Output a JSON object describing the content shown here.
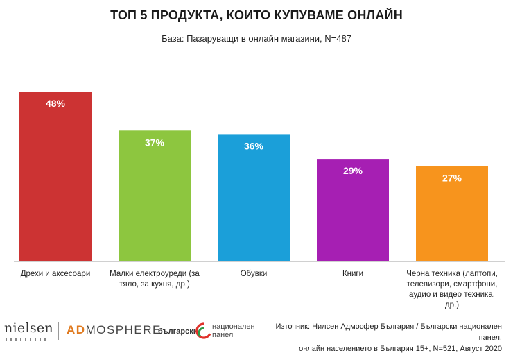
{
  "chart_data": {
    "type": "bar",
    "title": "ТОП 5 ПРОДУКТА, КОИТО КУПУВАМЕ ОНЛАЙН",
    "subtitle": "База: Пазаруващи в онлайн магазини, N=487",
    "categories": [
      "Дрехи и аксесоари",
      "Малки електроуреди (за тяло, за кухня, др.)",
      "Обувки",
      "Книги",
      "Черна техника (лаптопи, телевизори, смартфони, аудио и видео техника, др.)"
    ],
    "category_lines": [
      [
        "Дрехи и аксесоари"
      ],
      [
        "Малки електроуреди (за",
        "тяло, за кухня, др.)"
      ],
      [
        "Обувки"
      ],
      [
        "Книги"
      ],
      [
        "Черна техника (лаптопи,",
        "телевизори, смартфони,",
        "аудио и видео техника,",
        "др.)"
      ]
    ],
    "values": [
      48,
      37,
      36,
      29,
      27
    ],
    "value_labels": [
      "48%",
      "37%",
      "36%",
      "29%",
      "27%"
    ],
    "colors": [
      "#cc3333",
      "#8dc63f",
      "#1b9fd9",
      "#a61fb3",
      "#f7941d"
    ],
    "unit": "%",
    "ylim": [
      0,
      50
    ],
    "xlabel": "",
    "ylabel": "",
    "grid": false
  },
  "footer": {
    "logo_nielsen": "nielsen",
    "logo_admosphere_ad": "AD",
    "logo_admosphere_rest": "MOSPHERE",
    "logo_bnp_word1": "български",
    "logo_bnp_word2": "национален",
    "logo_bnp_word3": "панел",
    "source_line1": "Източник: Нилсен Адмосфер България / Български национален панел,",
    "source_line2": "онлайн населението в България 15+, N=521, Август 2020"
  }
}
